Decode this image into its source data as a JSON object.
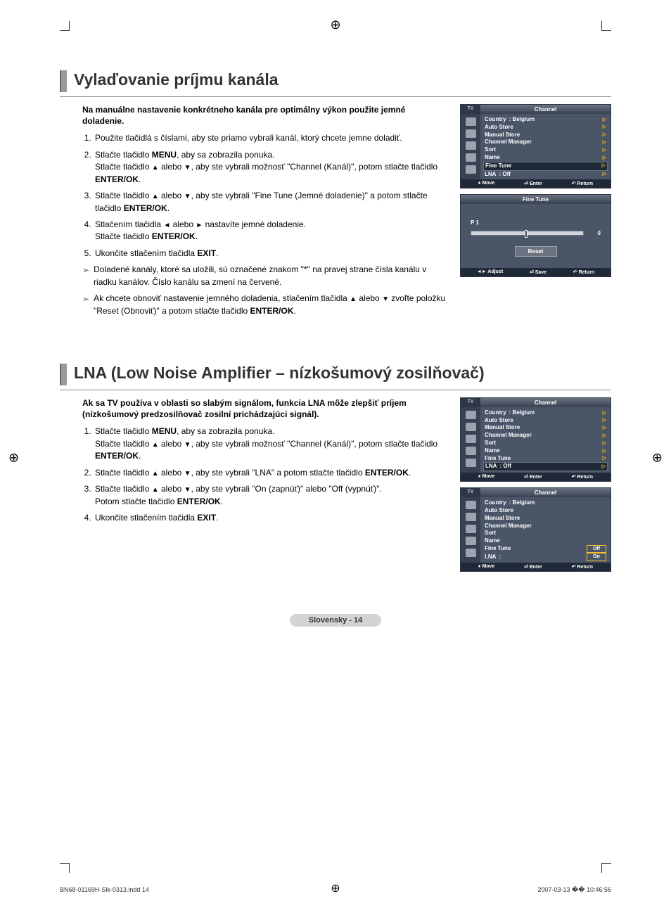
{
  "marks": {
    "reg": "⊕"
  },
  "section1": {
    "heading": "Vylaďovanie príjmu kanála",
    "intro": "Na manuálne nastavenie konkrétneho kanála pre optimálny výkon použite jemné doladenie.",
    "steps": [
      "Použite tlačidlá s číslami, aby ste priamo vybrali kanál, ktorý chcete jemne doladiť.",
      "Stlačte tlačidlo <b>MENU</b>, aby sa zobrazila ponuka.<br>Stlačte tlačidlo <span class='tri'>▲</span> alebo <span class='tri'>▼</span>, aby ste vybrali možnosť \"Channel (Kanál)\", potom stlačte tlačidlo <b>ENTER/OK</b>.",
      "Stlačte tlačidlo <span class='tri'>▲</span> alebo <span class='tri'>▼</span>, aby ste vybrali \"Fine Tune (Jemné doladenie)\" a potom stlačte tlačidlo <b>ENTER/OK</b>.",
      "Stlačením tlačidla <span class='tri'>◄</span> alebo <span class='tri'>►</span> nastavíte jemné doladenie.<br>Stlačte tlačidlo <b>ENTER/OK</b>.",
      "Ukončite stlačením tlačidla <b>EXIT</b>."
    ],
    "notes": [
      "Doladené kanály, ktoré sa uložili, sú označené znakom \"*\" na pravej strane čísla kanálu v riadku kanálov. Číslo kanálu sa zmení na červené.",
      "Ak chcete obnoviť nastavenie jemného doladenia, stlačením tlačidla <span class='tri'>▲</span> alebo <span class='tri'>▼</span> zvoľte položku \"Reset (Obnoviť)\" a potom stlačte tlačidlo <b>ENTER/OK</b>."
    ]
  },
  "section2": {
    "heading": "LNA (Low Noise Amplifier – nízkošumový zosilňovač)",
    "intro": "Ak sa TV používa v oblasti so slabým signálom, funkcia LNA môže zlepšiť príjem (nízkošumový predzosilňovač zosilní prichádzajúci signál).",
    "steps": [
      "Stlačte tlačidlo <b>MENU</b>, aby sa zobrazila ponuka.<br>Stlačte tlačidlo <span class='tri'>▲</span> alebo <span class='tri'>▼</span>, aby ste vybrali možnosť \"Channel (Kanál)\", potom stlačte tlačidlo <b>ENTER/OK</b>.",
      "Stlačte tlačidlo <span class='tri'>▲</span> alebo <span class='tri'>▼</span>, aby ste vybrali \"LNA\" a potom stlačte tlačidlo <b>ENTER/OK</b>.",
      "Stlačte tlačidlo <span class='tri'>▲</span> alebo <span class='tri'>▼</span>, aby ste vybrali \"On (zapnúť)\" alebo \"Off (vypnúť)\".<br>Potom stlačte tlačidlo <b>ENTER/OK</b>.",
      "Ukončite stlačením tlačidla <b>EXIT</b>."
    ]
  },
  "osd": {
    "tv": "TV",
    "title": "Channel",
    "items": {
      "country": "Country",
      "country_v": ": Belgium",
      "auto": "Auto Store",
      "manual": "Manual Store",
      "mgr": "Channel Manager",
      "sort": "Sort",
      "name": "Name",
      "fine": "Fine Tune",
      "lna": "LNA",
      "lna_v": ": Off"
    },
    "foot_move": "Move",
    "foot_enter": "Enter",
    "foot_return": "Return",
    "arrow": "▷",
    "opt_off": "Off",
    "opt_on": "On"
  },
  "ft": {
    "title": "Fine Tune",
    "label": "P 1",
    "value": "0",
    "reset": "Reset",
    "foot_adjust": "Adjust",
    "foot_save": "Save",
    "foot_return": "Return"
  },
  "badge": "Slovensky - 14",
  "footer": {
    "left": "BN68-01169H-Slk-0313.indd   14",
    "right": "2007-03-13   �� 10:46:56"
  }
}
